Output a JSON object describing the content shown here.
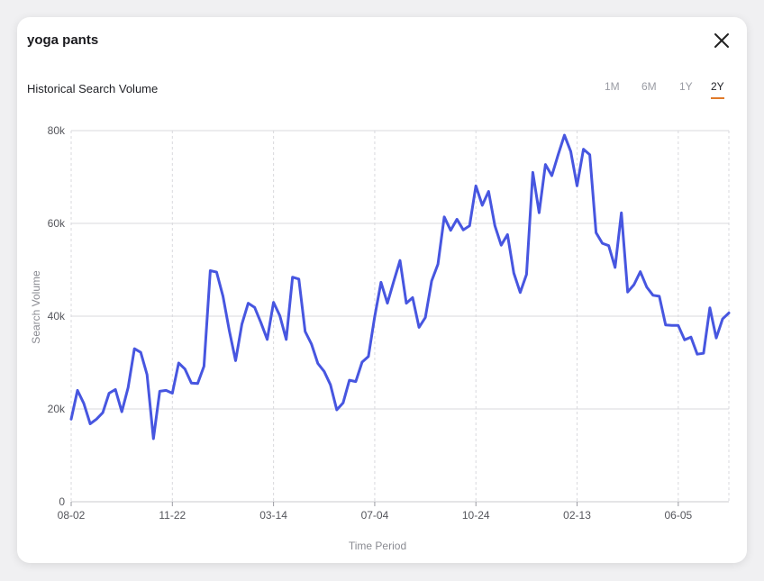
{
  "header": {
    "title": "yoga pants",
    "subtitle": "Historical Search Volume",
    "close_icon": "close-icon"
  },
  "range_tabs": [
    {
      "label": "1M",
      "active": false
    },
    {
      "label": "6M",
      "active": false
    },
    {
      "label": "1Y",
      "active": false
    },
    {
      "label": "2Y",
      "active": true
    }
  ],
  "colors": {
    "line": "#4756e0",
    "active_tab_underline": "#e07a2a",
    "grid": "#d9d9dd"
  },
  "chart_data": {
    "type": "line",
    "xlabel": "Time Period",
    "ylabel": "Search Volume",
    "ylim": [
      0,
      80000
    ],
    "y_ticks": [
      0,
      20000,
      40000,
      60000,
      80000
    ],
    "y_tick_labels": [
      "0",
      "20k",
      "40k",
      "60k",
      "80k"
    ],
    "x_tick_labels": [
      "08-02",
      "11-22",
      "03-14",
      "07-04",
      "10-24",
      "02-13",
      "06-05"
    ],
    "grid": true,
    "series": [
      {
        "values": [
          17800,
          24000,
          21200,
          16800,
          17800,
          19200,
          23400,
          24200,
          19400,
          24600,
          33000,
          32200,
          27400,
          13600,
          23800,
          24000,
          23400,
          29900,
          28600,
          25600,
          25500,
          29200,
          49800,
          49500,
          44300,
          36900,
          30400,
          38300,
          42800,
          41900,
          38600,
          35000,
          43000,
          40100,
          35000,
          48400,
          48000,
          36700,
          34000,
          29800,
          28100,
          25200,
          19800,
          21300,
          26200,
          25900,
          30100,
          31300,
          39900,
          47300,
          42800,
          47500,
          52000,
          42800,
          44000,
          37600,
          39700,
          47600,
          51200,
          61400,
          58500,
          60900,
          58600,
          59500,
          68100,
          63900,
          66900,
          59500,
          55300,
          57600,
          49300,
          45100,
          49000,
          71000,
          62300,
          72700,
          70300,
          74800,
          79000,
          75500,
          68100,
          76000,
          74800,
          58000,
          55700,
          55200,
          50500,
          62300,
          45200,
          46800,
          49600,
          46300,
          44500,
          44300,
          38100,
          38000,
          38000,
          34900,
          35500,
          31800,
          32000,
          41800,
          35300,
          39400,
          40700
        ]
      }
    ]
  }
}
